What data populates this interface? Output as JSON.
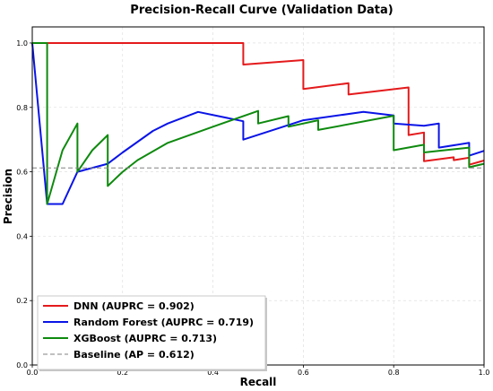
{
  "chart_data": {
    "type": "line",
    "title": "Precision-Recall Curve (Validation Data)",
    "xlabel": "Recall",
    "ylabel": "Precision",
    "xlim": [
      0,
      1
    ],
    "ylim": [
      0,
      1.05
    ],
    "xticks": [
      "0.0",
      "0.2",
      "0.4",
      "0.6",
      "0.8",
      "1.0"
    ],
    "yticks": [
      "0.0",
      "0.2",
      "0.4",
      "0.6",
      "0.8",
      "1.0"
    ],
    "grid": true,
    "legend_position": "lower-left",
    "series": [
      {
        "name": "DNN (AUPRC = 0.902)",
        "color": "#e41a1c",
        "style": "solid",
        "points": [
          [
            0.0,
            1.0
          ],
          [
            0.467,
            1.0
          ],
          [
            0.467,
            0.933
          ],
          [
            0.6,
            0.947
          ],
          [
            0.6,
            0.857
          ],
          [
            0.7,
            0.875
          ],
          [
            0.7,
            0.84
          ],
          [
            0.833,
            0.862
          ],
          [
            0.833,
            0.714
          ],
          [
            0.867,
            0.722
          ],
          [
            0.867,
            0.633
          ],
          [
            0.933,
            0.645
          ],
          [
            0.933,
            0.636
          ],
          [
            0.967,
            0.644
          ],
          [
            0.967,
            0.622
          ],
          [
            1.0,
            0.635
          ]
        ]
      },
      {
        "name": "Random Forest (AUPRC = 0.719)",
        "color": "#0a14e6",
        "style": "solid",
        "points": [
          [
            0.0,
            1.0
          ],
          [
            0.033,
            0.5
          ],
          [
            0.067,
            0.5
          ],
          [
            0.1,
            0.6
          ],
          [
            0.167,
            0.625
          ],
          [
            0.2,
            0.66
          ],
          [
            0.267,
            0.727
          ],
          [
            0.3,
            0.75
          ],
          [
            0.367,
            0.786
          ],
          [
            0.467,
            0.757
          ],
          [
            0.467,
            0.7
          ],
          [
            0.6,
            0.76
          ],
          [
            0.733,
            0.786
          ],
          [
            0.8,
            0.775
          ],
          [
            0.8,
            0.75
          ],
          [
            0.867,
            0.743
          ],
          [
            0.9,
            0.75
          ],
          [
            0.9,
            0.675
          ],
          [
            0.967,
            0.69
          ],
          [
            0.967,
            0.65
          ],
          [
            1.0,
            0.665
          ]
        ]
      },
      {
        "name": "XGBoost (AUPRC = 0.713)",
        "color": "#0e8a0e",
        "style": "solid",
        "points": [
          [
            0.0,
            1.0
          ],
          [
            0.033,
            1.0
          ],
          [
            0.033,
            0.5
          ],
          [
            0.067,
            0.667
          ],
          [
            0.1,
            0.75
          ],
          [
            0.1,
            0.6
          ],
          [
            0.133,
            0.667
          ],
          [
            0.167,
            0.714
          ],
          [
            0.167,
            0.556
          ],
          [
            0.2,
            0.6
          ],
          [
            0.233,
            0.636
          ],
          [
            0.3,
            0.69
          ],
          [
            0.4,
            0.74
          ],
          [
            0.5,
            0.789
          ],
          [
            0.5,
            0.75
          ],
          [
            0.567,
            0.773
          ],
          [
            0.567,
            0.74
          ],
          [
            0.633,
            0.76
          ],
          [
            0.633,
            0.73
          ],
          [
            0.8,
            0.774
          ],
          [
            0.8,
            0.667
          ],
          [
            0.867,
            0.684
          ],
          [
            0.867,
            0.66
          ],
          [
            0.967,
            0.675
          ],
          [
            0.967,
            0.614
          ],
          [
            1.0,
            0.625
          ]
        ]
      },
      {
        "name": "Baseline (AP = 0.612)",
        "color": "#808080",
        "style": "dashed",
        "points": [
          [
            0.0,
            0.612
          ],
          [
            1.0,
            0.612
          ]
        ]
      }
    ]
  }
}
